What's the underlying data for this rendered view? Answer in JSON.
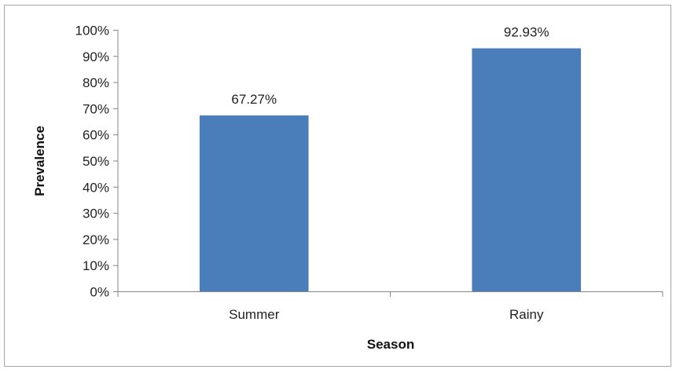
{
  "chart_data": {
    "type": "bar",
    "categories": [
      "Summer",
      "Rainy"
    ],
    "values": [
      67.27,
      92.93
    ],
    "data_labels": [
      "67.27%",
      "92.93%"
    ],
    "xlabel": "Season",
    "ylabel": "Prevalence",
    "ylim": [
      0,
      100
    ],
    "yticks": [
      0,
      10,
      20,
      30,
      40,
      50,
      60,
      70,
      80,
      90,
      100
    ],
    "ytick_labels": [
      "0%",
      "10%",
      "20%",
      "30%",
      "40%",
      "50%",
      "60%",
      "70%",
      "80%",
      "90%",
      "100%"
    ],
    "grid": false,
    "legend": "none",
    "bar_color": "#4a7ebb",
    "axis_color": "#868686"
  }
}
